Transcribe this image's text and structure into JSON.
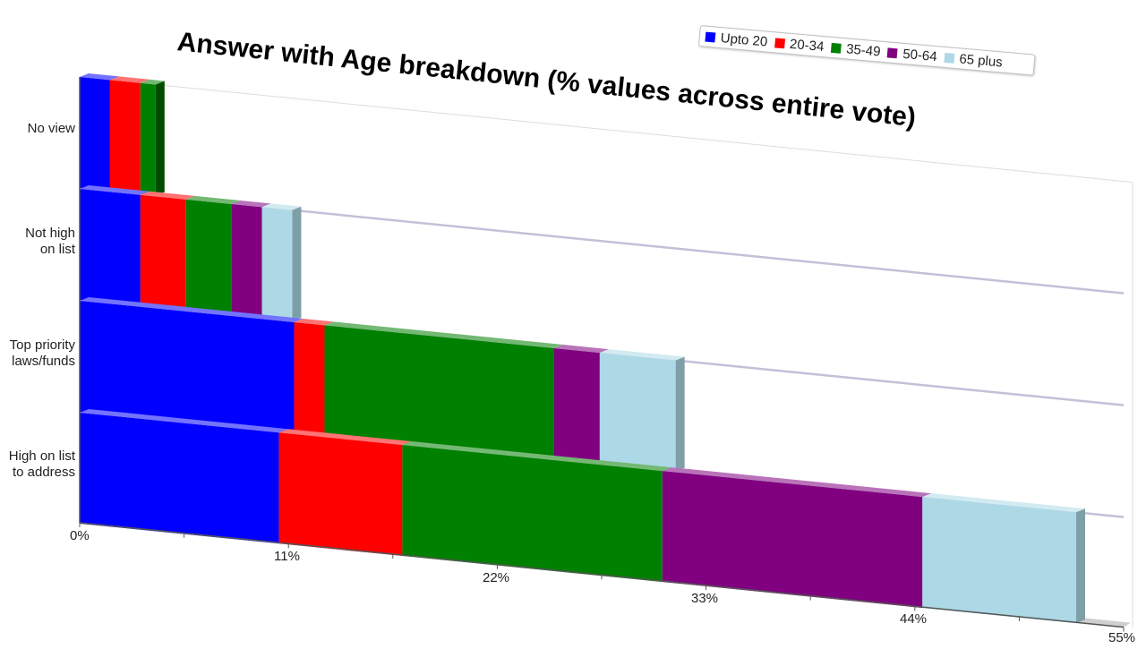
{
  "chart_data": {
    "type": "bar",
    "orientation": "horizontal",
    "stacked": true,
    "title": "Answer with Age breakdown (% values across entire vote)",
    "categories": [
      "No view",
      "Not high\non list",
      "Top priority\nlaws/funds",
      "High on list\nto address"
    ],
    "category_lines": [
      [
        "No view"
      ],
      [
        "Not high",
        "on list"
      ],
      [
        "Top priority",
        "laws/funds"
      ],
      [
        "High on list",
        "to address"
      ]
    ],
    "series": [
      {
        "name": "Upto 20",
        "color": "#0000ff",
        "values": [
          1.6,
          3.2,
          11.3,
          10.5
        ]
      },
      {
        "name": "20-34",
        "color": "#ff0000",
        "values": [
          1.6,
          2.4,
          1.6,
          6.5
        ]
      },
      {
        "name": "35-49",
        "color": "#008000",
        "values": [
          0.8,
          2.4,
          12.1,
          13.7
        ]
      },
      {
        "name": "50-64",
        "color": "#800080",
        "values": [
          0,
          1.6,
          2.4,
          13.7
        ]
      },
      {
        "name": "65 plus",
        "color": "#add8e6",
        "values": [
          0,
          1.6,
          4.0,
          8.1
        ]
      }
    ],
    "x_ticks": [
      "0%",
      "11%",
      "22%",
      "33%",
      "44%",
      "55%"
    ],
    "xlim": [
      0,
      55
    ],
    "legend_position": "top-right",
    "grid": false
  }
}
